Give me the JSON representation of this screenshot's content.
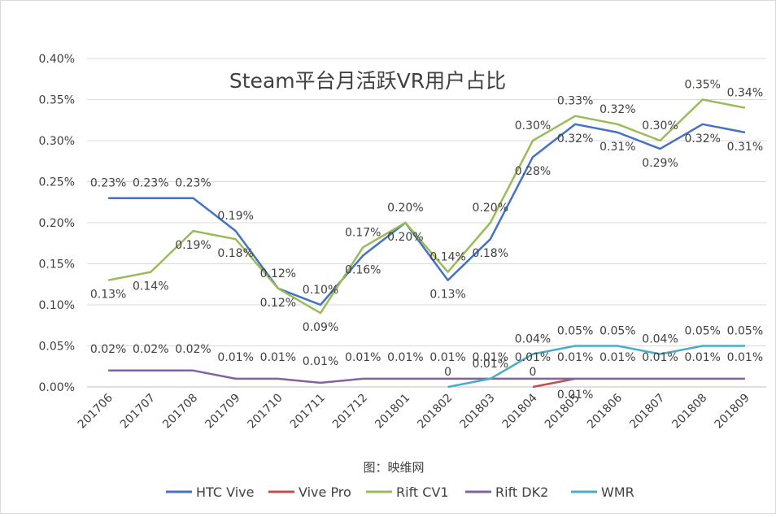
{
  "chart_data": {
    "type": "line",
    "title": "Steam平台月活跃VR用户占比",
    "source": "图：映维网",
    "categories": [
      "201706",
      "201707",
      "201708",
      "201709",
      "201710",
      "201711",
      "201712",
      "201801",
      "201802",
      "201803",
      "201804",
      "201805",
      "201806",
      "201807",
      "201808",
      "201809"
    ],
    "y_ticks": [
      "0.00%",
      "0.05%",
      "0.10%",
      "0.15%",
      "0.20%",
      "0.25%",
      "0.30%",
      "0.35%",
      "0.40%"
    ],
    "ylim": [
      0,
      0.4
    ],
    "y_unit": "%",
    "grid": true,
    "legend_position": "bottom",
    "series": [
      {
        "name": "HTC Vive",
        "color": "#4472C4",
        "values": [
          0.23,
          0.23,
          0.23,
          0.19,
          0.12,
          0.1,
          0.16,
          0.2,
          0.13,
          0.18,
          0.28,
          0.32,
          0.31,
          0.29,
          0.32,
          0.31
        ],
        "labels": [
          "0.23%",
          "0.23%",
          "0.23%",
          "0.19%",
          "0.12%",
          "0.10%",
          "0.16%",
          "0.20%",
          "0.13%",
          "0.18%",
          "0.28%",
          "0.32%",
          "0.31%",
          "0.29%",
          "0.32%",
          "0.31%"
        ]
      },
      {
        "name": "Vive Pro",
        "color": "#C0504D",
        "values": [
          null,
          null,
          null,
          null,
          null,
          null,
          null,
          null,
          null,
          null,
          0,
          0.01,
          null,
          null,
          null,
          null
        ],
        "labels": [
          null,
          null,
          null,
          null,
          null,
          null,
          null,
          null,
          null,
          null,
          "0",
          "0.01%",
          null,
          null,
          null,
          null
        ]
      },
      {
        "name": "Rift CV1",
        "color": "#9BBB59",
        "values": [
          0.13,
          0.14,
          0.19,
          0.18,
          0.12,
          0.09,
          0.17,
          0.2,
          0.14,
          0.2,
          0.3,
          0.33,
          0.32,
          0.3,
          0.35,
          0.34
        ],
        "labels": [
          "0.13%",
          "0.14%",
          "0.19%",
          "0.18%",
          "0.12%",
          "0.09%",
          "0.17%",
          "0.20%",
          "0.14%",
          "0.20%",
          "0.30%",
          "0.33%",
          "0.32%",
          "0.30%",
          "0.35%",
          "0.34%"
        ]
      },
      {
        "name": "Rift DK2",
        "color": "#8064A2",
        "values": [
          0.02,
          0.02,
          0.02,
          0.01,
          0.01,
          0.005,
          0.01,
          0.01,
          0.01,
          0.01,
          0.01,
          0.01,
          0.01,
          0.01,
          0.01,
          0.01
        ],
        "labels": [
          "0.02%",
          "0.02%",
          "0.02%",
          "0.01%",
          "0.01%",
          "0.01%",
          "0.01%",
          "0.01%",
          "0.01%",
          "0.01%",
          "0.01%",
          "0.01%",
          "0.01%",
          "0.01%",
          "0.01%",
          "0.01%"
        ]
      },
      {
        "name": "WMR",
        "color": "#4BACC6",
        "values": [
          null,
          null,
          null,
          null,
          null,
          null,
          null,
          null,
          0,
          0.01,
          0.04,
          0.05,
          0.05,
          0.04,
          0.05,
          0.05
        ],
        "labels": [
          null,
          null,
          null,
          null,
          null,
          null,
          null,
          null,
          "0",
          "0.01%",
          "0.04%",
          "0.05%",
          "0.05%",
          "0.04%",
          "0.05%",
          "0.05%"
        ]
      }
    ]
  }
}
